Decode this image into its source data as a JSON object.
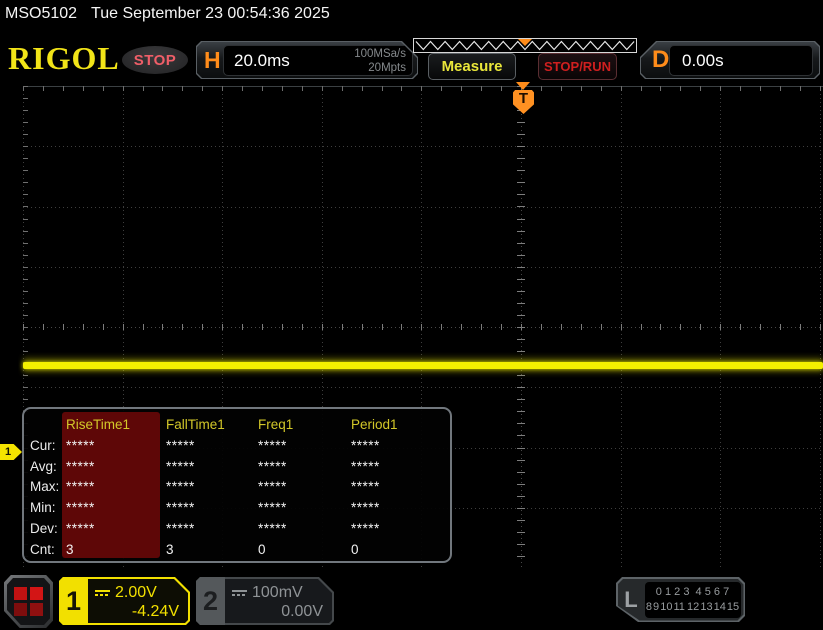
{
  "info_bar": {
    "model": "MSO5102",
    "datetime": "Tue September 23 00:54:36 2025"
  },
  "header": {
    "logo": "RIGOL",
    "run_state": "STOP",
    "horizontal": {
      "label": "H",
      "timebase": "20.0ms",
      "sample_rate": "100MSa/s",
      "memory_depth": "20Mpts"
    },
    "measure_label": "Measure",
    "stop_run_label": "STOP/RUN",
    "delay": {
      "label": "D",
      "value": "0.00s"
    }
  },
  "trigger": {
    "marker": "T"
  },
  "measurements": {
    "columns": [
      "RiseTime1",
      "FallTime1",
      "Freq1",
      "Period1"
    ],
    "rows": [
      {
        "label": "Cur:",
        "values": [
          "*****",
          "*****",
          "*****",
          "*****"
        ]
      },
      {
        "label": "Avg:",
        "values": [
          "*****",
          "*****",
          "*****",
          "*****"
        ]
      },
      {
        "label": "Max:",
        "values": [
          "*****",
          "*****",
          "*****",
          "*****"
        ]
      },
      {
        "label": "Min:",
        "values": [
          "*****",
          "*****",
          "*****",
          "*****"
        ]
      },
      {
        "label": "Dev:",
        "values": [
          "*****",
          "*****",
          "*****",
          "*****"
        ]
      },
      {
        "label": "Cnt:",
        "values": [
          "3",
          "3",
          "0",
          "0"
        ]
      }
    ]
  },
  "channel_marker": {
    "label": "1"
  },
  "channels": [
    {
      "id": "1",
      "scale": "2.00V",
      "offset": "-4.24V"
    },
    {
      "id": "2",
      "scale": "100mV",
      "offset": "0.00V"
    }
  ],
  "logic": {
    "label": "L",
    "row1": "0 1 2 3  4 5 6 7",
    "row2": "8 9 10 11  12 13 14 15"
  },
  "colors": {
    "accent_yellow": "#f2e418",
    "accent_orange": "#ff8c1a",
    "stop_red": "#cf1f1f",
    "channel1_yellow": "#f2e000",
    "trace_yellow": "#f4f000",
    "highlight_red": "#5e0707"
  }
}
